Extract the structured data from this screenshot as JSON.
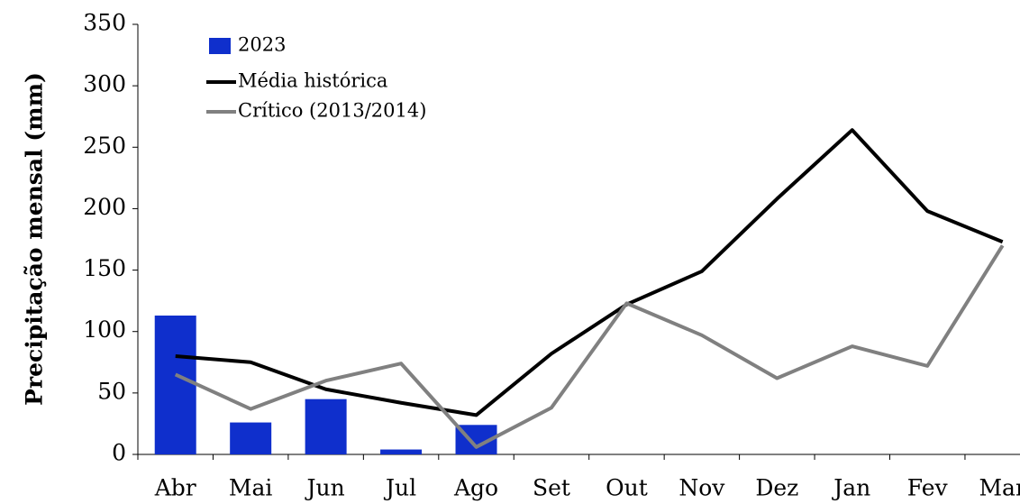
{
  "chart_data": {
    "type": "combo",
    "y_label": "Precipitação mensal (mm)",
    "categories": [
      "Abr",
      "Mai",
      "Jun",
      "Jul",
      "Ago",
      "Set",
      "Out",
      "Nov",
      "Dez",
      "Jan",
      "Fev",
      "Mar"
    ],
    "series": [
      {
        "name": "2023",
        "type": "bar",
        "color": "#0f2fcc",
        "values": [
          113,
          26,
          45,
          4,
          24,
          null,
          null,
          null,
          null,
          null,
          null,
          null
        ]
      },
      {
        "name": "Média histórica",
        "type": "line",
        "color": "#000000",
        "values": [
          80,
          75,
          53,
          42,
          32,
          82,
          122,
          149,
          208,
          264,
          198,
          173
        ]
      },
      {
        "name": "Crítico (2013/2014)",
        "type": "line",
        "color": "#808080",
        "values": [
          65,
          37,
          60,
          74,
          6,
          38,
          123,
          97,
          62,
          88,
          72,
          170
        ]
      }
    ],
    "ylim": [
      0,
      350
    ],
    "yticks": [
      0,
      50,
      100,
      150,
      200,
      250,
      300,
      350
    ],
    "grid": false,
    "legend": "upper left"
  }
}
